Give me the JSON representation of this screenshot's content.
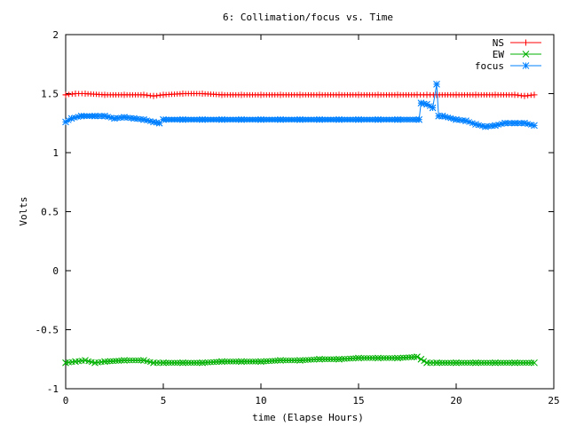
{
  "chart_data": {
    "type": "line",
    "title": "6: Collimation/focus vs. Time",
    "xlabel": "time (Elapse Hours)",
    "ylabel": "Volts",
    "xlim": [
      0,
      25
    ],
    "ylim": [
      -1,
      2
    ],
    "xticks": [
      0,
      5,
      10,
      15,
      20,
      25
    ],
    "xtick_labels": [
      "0",
      "5",
      "10",
      "15",
      "20",
      "25"
    ],
    "yticks": [
      -1,
      -0.5,
      0,
      0.5,
      1,
      1.5,
      2
    ],
    "ytick_labels": [
      "-1",
      "-0.5",
      "0",
      "0.5",
      "1",
      "1.5",
      "2"
    ],
    "grid": false,
    "legend_position": "top-right",
    "series": [
      {
        "name": "NS",
        "color": "#ff0000",
        "marker": "plus",
        "x": [
          0,
          0.5,
          1,
          2,
          3,
          4,
          4.5,
          5,
          6,
          7,
          8,
          9,
          10,
          11,
          12,
          13,
          14,
          15,
          16,
          17,
          18,
          18.5,
          19,
          20,
          21,
          22,
          23,
          23.5,
          24
        ],
        "y": [
          1.49,
          1.5,
          1.5,
          1.49,
          1.49,
          1.49,
          1.48,
          1.49,
          1.5,
          1.5,
          1.49,
          1.49,
          1.49,
          1.49,
          1.49,
          1.49,
          1.49,
          1.49,
          1.49,
          1.49,
          1.49,
          1.49,
          1.49,
          1.49,
          1.49,
          1.49,
          1.49,
          1.48,
          1.49
        ]
      },
      {
        "name": "EW",
        "color": "#00b000",
        "marker": "cross",
        "x": [
          0,
          0.5,
          1,
          1.5,
          2,
          3,
          4,
          4.5,
          5,
          6,
          7,
          8,
          9,
          10,
          11,
          12,
          13,
          14,
          15,
          16,
          17,
          18,
          18.2,
          18.5,
          19,
          20,
          21,
          22,
          23,
          24
        ],
        "y": [
          -0.78,
          -0.77,
          -0.76,
          -0.78,
          -0.77,
          -0.76,
          -0.76,
          -0.78,
          -0.78,
          -0.78,
          -0.78,
          -0.77,
          -0.77,
          -0.77,
          -0.76,
          -0.76,
          -0.75,
          -0.75,
          -0.74,
          -0.74,
          -0.74,
          -0.73,
          -0.75,
          -0.78,
          -0.78,
          -0.78,
          -0.78,
          -0.78,
          -0.78,
          -0.78
        ]
      },
      {
        "name": "focus",
        "color": "#0080ff",
        "marker": "star",
        "x": [
          0,
          0.3,
          0.8,
          1.5,
          2,
          2.5,
          3,
          3.5,
          4,
          4.5,
          4.8,
          5,
          6,
          7,
          8,
          9,
          10,
          11,
          12,
          13,
          14,
          15,
          16,
          17,
          18.1,
          18.2,
          18.5,
          18.8,
          19,
          19.1,
          19.3,
          20,
          20.5,
          21,
          21.5,
          22,
          22.5,
          23,
          23.5,
          24
        ],
        "y": [
          1.26,
          1.29,
          1.31,
          1.31,
          1.31,
          1.29,
          1.3,
          1.29,
          1.28,
          1.26,
          1.25,
          1.28,
          1.28,
          1.28,
          1.28,
          1.28,
          1.28,
          1.28,
          1.28,
          1.28,
          1.28,
          1.28,
          1.28,
          1.28,
          1.28,
          1.42,
          1.41,
          1.38,
          1.58,
          1.31,
          1.31,
          1.28,
          1.27,
          1.24,
          1.22,
          1.23,
          1.25,
          1.25,
          1.25,
          1.23
        ]
      }
    ]
  }
}
